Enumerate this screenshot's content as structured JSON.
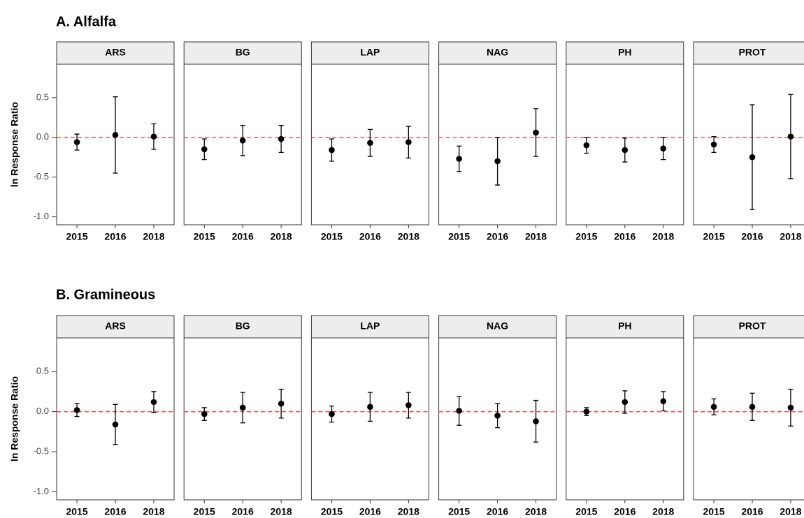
{
  "chart_data": [
    {
      "type": "errorbar",
      "title": "A. Alfalfa",
      "ylabel": "ln Response Ratio",
      "categories": [
        "2015",
        "2016",
        "2018"
      ],
      "series": [
        {
          "name": "ARS",
          "values": [
            -0.06,
            0.03,
            0.01
          ],
          "errors": [
            0.1,
            0.48,
            0.16
          ]
        },
        {
          "name": "BG",
          "values": [
            -0.15,
            -0.04,
            -0.02
          ],
          "errors": [
            0.13,
            0.19,
            0.17
          ]
        },
        {
          "name": "LAP",
          "values": [
            -0.16,
            -0.07,
            -0.06
          ],
          "errors": [
            0.14,
            0.17,
            0.2
          ]
        },
        {
          "name": "NAG",
          "values": [
            -0.27,
            -0.3,
            0.06
          ],
          "errors": [
            0.16,
            0.3,
            0.3
          ]
        },
        {
          "name": "PH",
          "values": [
            -0.1,
            -0.16,
            -0.14
          ],
          "errors": [
            0.1,
            0.15,
            0.14
          ]
        },
        {
          "name": "PROT",
          "values": [
            -0.09,
            -0.25,
            0.01
          ],
          "errors": [
            0.1,
            0.66,
            0.53
          ]
        }
      ],
      "color": "#000000",
      "ylim": [
        -1.1,
        0.92
      ],
      "yticks": [
        {
          "value": -1,
          "label": "-1.0"
        },
        -0.5,
        {
          "value": 0,
          "label": "0.0"
        },
        0.5
      ],
      "hline": 0,
      "hline_color": "#ff4d4d"
    },
    {
      "type": "errorbar",
      "title": "B. Gramineous",
      "ylabel": "ln Response Ratio",
      "categories": [
        "2015",
        "2016",
        "2018"
      ],
      "series": [
        {
          "name": "ARS",
          "values": [
            0.02,
            -0.16,
            0.12
          ],
          "errors": [
            0.08,
            0.25,
            0.13
          ]
        },
        {
          "name": "BG",
          "values": [
            -0.03,
            0.05,
            0.1
          ],
          "errors": [
            0.08,
            0.19,
            0.18
          ]
        },
        {
          "name": "LAP",
          "values": [
            -0.03,
            0.06,
            0.08
          ],
          "errors": [
            0.1,
            0.18,
            0.16
          ]
        },
        {
          "name": "NAG",
          "values": [
            0.01,
            -0.05,
            -0.12
          ],
          "errors": [
            0.18,
            0.15,
            0.26
          ]
        },
        {
          "name": "PH",
          "values": [
            0.0,
            0.12,
            0.13
          ],
          "errors": [
            0.05,
            0.14,
            0.12
          ]
        },
        {
          "name": "PROT",
          "values": [
            0.06,
            0.06,
            0.05
          ],
          "errors": [
            0.1,
            0.17,
            0.23
          ]
        }
      ],
      "color": "#000000",
      "ylim": [
        -1.1,
        0.92
      ],
      "yticks": [
        {
          "value": -1,
          "label": "-1.0"
        },
        -0.5,
        {
          "value": 0,
          "label": "0.0"
        },
        0.5
      ],
      "hline": 0,
      "hline_color": "#ff4d4d"
    }
  ]
}
